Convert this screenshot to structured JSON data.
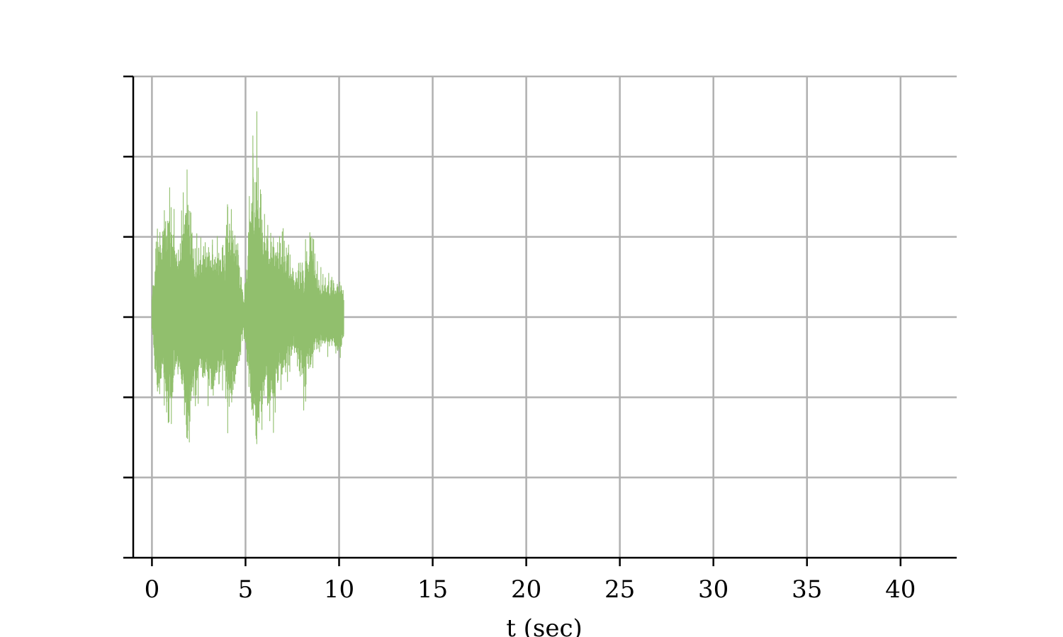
{
  "chart_data": {
    "type": "line",
    "title": "",
    "xlabel": "t (sec)",
    "ylabel": "",
    "xlim": [
      -1,
      43
    ],
    "ylim": [
      -3,
      3
    ],
    "x_ticks": [
      0,
      5,
      10,
      15,
      20,
      25,
      30,
      35,
      40
    ],
    "x_tick_labels": [
      "0",
      "5",
      "10",
      "15",
      "20",
      "25",
      "30",
      "35",
      "40"
    ],
    "y_ticks": [
      -3,
      -2,
      -1,
      0,
      1,
      2,
      3
    ],
    "y_tick_labels": [
      "",
      "",
      "",
      "",
      "",
      "",
      ""
    ],
    "grid": true,
    "series": [
      {
        "color": "#91bf6d",
        "description_points": [
          {
            "t": 0.0,
            "min": -0.2,
            "max": 0.4
          },
          {
            "t": 0.3,
            "min": -1.5,
            "max": 1.5
          },
          {
            "t": 0.6,
            "min": -1.0,
            "max": 1.5
          },
          {
            "t": 0.9,
            "min": -1.9,
            "max": 1.9
          },
          {
            "t": 1.2,
            "min": -1.0,
            "max": 1.4
          },
          {
            "t": 1.5,
            "min": -0.9,
            "max": 1.2
          },
          {
            "t": 1.9,
            "min": -2.4,
            "max": 2.1
          },
          {
            "t": 2.2,
            "min": -1.3,
            "max": 1.2
          },
          {
            "t": 2.6,
            "min": -1.1,
            "max": 1.0
          },
          {
            "t": 3.0,
            "min": -1.2,
            "max": 1.2
          },
          {
            "t": 3.4,
            "min": -1.3,
            "max": 1.1
          },
          {
            "t": 3.8,
            "min": -0.9,
            "max": 1.0
          },
          {
            "t": 4.1,
            "min": -1.6,
            "max": 1.7
          },
          {
            "t": 4.5,
            "min": -1.1,
            "max": 1.4
          },
          {
            "t": 4.9,
            "min": -0.2,
            "max": 0.3
          },
          {
            "t": 5.3,
            "min": -1.5,
            "max": 2.1
          },
          {
            "t": 5.6,
            "min": -2.2,
            "max": 2.9
          },
          {
            "t": 6.0,
            "min": -1.4,
            "max": 1.5
          },
          {
            "t": 6.4,
            "min": -1.7,
            "max": 1.4
          },
          {
            "t": 6.8,
            "min": -1.0,
            "max": 1.3
          },
          {
            "t": 7.2,
            "min": -0.9,
            "max": 1.2
          },
          {
            "t": 7.6,
            "min": -0.6,
            "max": 0.7
          },
          {
            "t": 8.1,
            "min": -1.2,
            "max": 0.9
          },
          {
            "t": 8.5,
            "min": -0.8,
            "max": 1.5
          },
          {
            "t": 8.9,
            "min": -0.5,
            "max": 0.6
          },
          {
            "t": 9.3,
            "min": -0.5,
            "max": 0.7
          },
          {
            "t": 9.7,
            "min": -0.5,
            "max": 0.6
          },
          {
            "t": 10.0,
            "min": -0.7,
            "max": 0.5
          },
          {
            "t": 10.25,
            "min": -0.4,
            "max": 0.5
          }
        ]
      }
    ]
  }
}
